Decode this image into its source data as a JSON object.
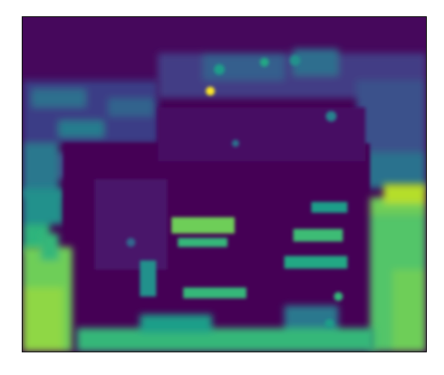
{
  "image": {
    "kind": "heatmap-rendered feature map",
    "colormap": "viridis",
    "palette": {
      "v0": "#440154",
      "v1": "#482677",
      "v2": "#3e4a89",
      "v3": "#31688e",
      "v4": "#26828e",
      "v5": "#1f9e89",
      "v6": "#35b779",
      "v7": "#6ece58",
      "v8": "#b5de2b",
      "v9": "#fde725"
    },
    "frame_color": "#000000"
  }
}
